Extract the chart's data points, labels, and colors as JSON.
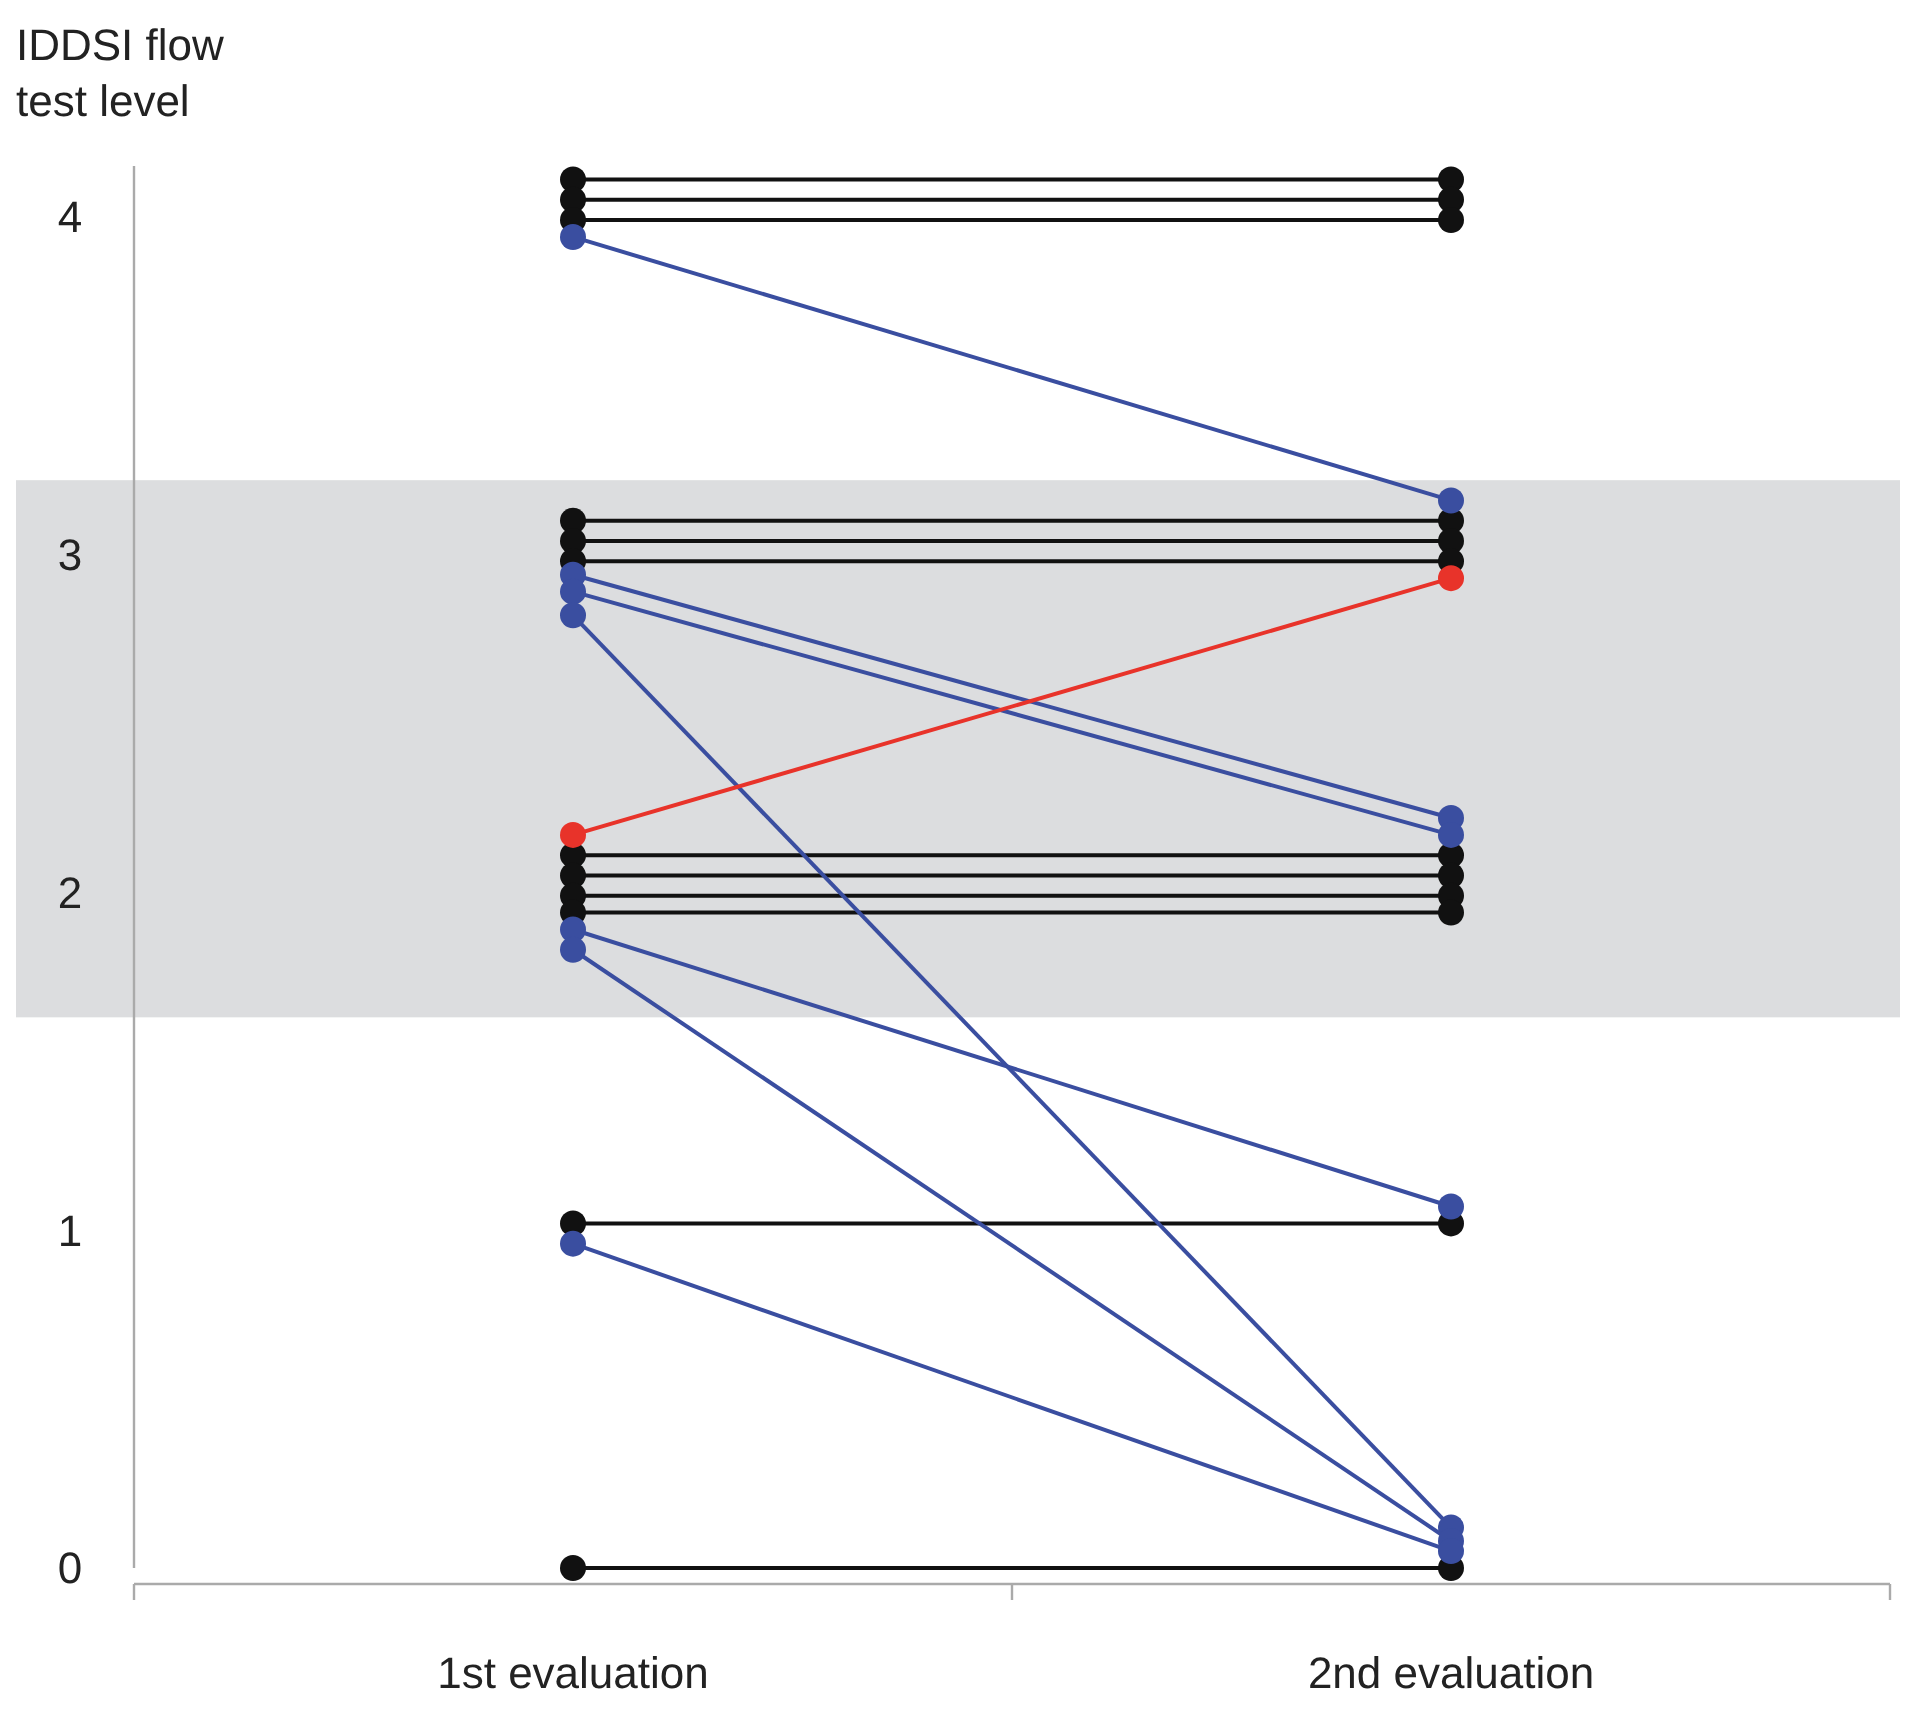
{
  "chart_data": {
    "type": "line",
    "ylabel": "IDDSI flow test level",
    "categories": [
      "1st evaluation",
      "2nd evaluation"
    ],
    "ylim": [
      0,
      4.15
    ],
    "yticks": [
      0,
      1,
      2,
      3,
      4
    ],
    "marker": "circle",
    "line_style": "solid",
    "bands": [
      {
        "axis": "y",
        "from": 1.63,
        "to": 3.22,
        "color": "#dcdddf"
      }
    ],
    "series": [
      {
        "color": "#111111",
        "values": [
          4.11,
          4.11
        ]
      },
      {
        "color": "#111111",
        "values": [
          4.05,
          4.05
        ]
      },
      {
        "color": "#111111",
        "values": [
          3.99,
          3.99
        ]
      },
      {
        "color": "#111111",
        "values": [
          3.1,
          3.1
        ]
      },
      {
        "color": "#111111",
        "values": [
          3.04,
          3.04
        ]
      },
      {
        "color": "#111111",
        "values": [
          2.98,
          2.98
        ]
      },
      {
        "color": "#111111",
        "values": [
          2.11,
          2.11
        ]
      },
      {
        "color": "#111111",
        "values": [
          2.05,
          2.05
        ]
      },
      {
        "color": "#111111",
        "values": [
          1.99,
          1.99
        ]
      },
      {
        "color": "#111111",
        "values": [
          1.94,
          1.94
        ]
      },
      {
        "color": "#111111",
        "values": [
          1.02,
          1.02
        ]
      },
      {
        "color": "#111111",
        "values": [
          0,
          0
        ]
      },
      {
        "color": "#3a4ea0",
        "values": [
          3.94,
          3.16
        ]
      },
      {
        "color": "#3a4ea0",
        "values": [
          2.94,
          2.22
        ]
      },
      {
        "color": "#3a4ea0",
        "values": [
          2.89,
          2.17
        ]
      },
      {
        "color": "#3a4ea0",
        "values": [
          2.82,
          0.12
        ]
      },
      {
        "color": "#3a4ea0",
        "values": [
          1.89,
          1.07
        ]
      },
      {
        "color": "#3a4ea0",
        "values": [
          1.83,
          0.08
        ]
      },
      {
        "color": "#3a4ea0",
        "values": [
          0.96,
          0.05
        ]
      },
      {
        "color": "#e8332a",
        "values": [
          2.17,
          2.93
        ]
      }
    ]
  }
}
